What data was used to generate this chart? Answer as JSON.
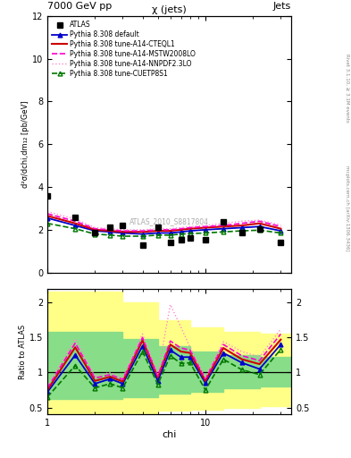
{
  "title_left": "7000 GeV pp",
  "title_right": "Jets",
  "main_title": "χ (jets)",
  "ylabel_main": "d²σ/dchi,dm₁₂ [pb/GeV]",
  "ylabel_ratio": "Ratio to ATLAS",
  "xlabel": "chi",
  "watermark": "ATLAS_2010_S8817804",
  "right_label_top": "Rivet 3.1.10, ≥ 3.1M events",
  "right_label_bottom": "mcplots.cern.ch [arXiv:1306.3436]",
  "chi_values": [
    1.0,
    1.5,
    2.0,
    2.5,
    3.0,
    4.0,
    5.0,
    6.0,
    7.0,
    8.0,
    10.0,
    13.0,
    17.0,
    22.0,
    30.0
  ],
  "atlas_y": [
    3.6,
    2.6,
    1.85,
    2.1,
    2.2,
    1.3,
    2.1,
    1.4,
    1.55,
    1.6,
    1.55,
    2.35,
    1.85,
    2.05,
    1.4
  ],
  "pythia_default_y": [
    2.55,
    2.2,
    1.95,
    1.9,
    1.85,
    1.8,
    1.85,
    1.85,
    1.9,
    1.95,
    2.0,
    2.05,
    2.1,
    2.15,
    1.95
  ],
  "pythia_cteql1_y": [
    2.65,
    2.3,
    2.0,
    1.95,
    1.9,
    1.9,
    1.95,
    1.95,
    2.0,
    2.05,
    2.1,
    2.15,
    2.2,
    2.3,
    2.05
  ],
  "pythia_mstw_y": [
    2.75,
    2.4,
    2.05,
    2.0,
    1.95,
    1.95,
    2.0,
    2.0,
    2.05,
    2.1,
    2.15,
    2.2,
    2.3,
    2.4,
    2.15
  ],
  "pythia_nnpdf_y": [
    2.85,
    2.5,
    2.1,
    2.05,
    2.0,
    2.0,
    2.05,
    2.05,
    2.1,
    2.15,
    2.2,
    2.3,
    2.4,
    2.45,
    2.22
  ],
  "pythia_cuetp8s1_y": [
    2.3,
    2.05,
    1.8,
    1.75,
    1.7,
    1.7,
    1.75,
    1.75,
    1.8,
    1.82,
    1.85,
    1.9,
    1.95,
    1.98,
    1.85
  ],
  "ratio_default": [
    0.72,
    1.25,
    0.84,
    0.91,
    0.84,
    1.38,
    0.88,
    1.32,
    1.22,
    1.22,
    0.85,
    1.28,
    1.14,
    1.05,
    1.4
  ],
  "ratio_cteql1": [
    0.75,
    1.36,
    0.88,
    0.94,
    0.87,
    1.46,
    0.93,
    1.4,
    1.3,
    1.28,
    0.88,
    1.35,
    1.19,
    1.12,
    1.47
  ],
  "ratio_mstw": [
    0.78,
    1.42,
    0.92,
    0.97,
    0.9,
    1.5,
    0.95,
    1.45,
    1.35,
    1.32,
    0.91,
    1.4,
    1.24,
    1.17,
    1.55
  ],
  "ratio_nnpdf": [
    0.8,
    1.48,
    0.95,
    1.0,
    0.92,
    1.55,
    0.98,
    1.97,
    1.65,
    1.36,
    0.93,
    1.44,
    1.3,
    1.22,
    1.62
  ],
  "ratio_cuetp8s1": [
    0.65,
    1.1,
    0.78,
    0.84,
    0.78,
    1.3,
    0.83,
    1.24,
    1.13,
    1.14,
    0.75,
    1.19,
    1.04,
    0.97,
    1.33
  ],
  "yellow_band_x": [
    1.0,
    2.0,
    3.0,
    5.0,
    8.0,
    13.0,
    22.0,
    35.0
  ],
  "yellow_band_lo": [
    0.4,
    0.4,
    0.42,
    0.45,
    0.47,
    0.5,
    0.52,
    0.52
  ],
  "yellow_band_hi": [
    2.15,
    2.15,
    2.0,
    1.75,
    1.65,
    1.58,
    1.55,
    1.55
  ],
  "green_band_x": [
    1.0,
    2.0,
    3.0,
    5.0,
    8.0,
    13.0,
    22.0,
    35.0
  ],
  "green_band_lo": [
    0.62,
    0.62,
    0.65,
    0.7,
    0.73,
    0.78,
    0.8,
    0.8
  ],
  "green_band_hi": [
    1.58,
    1.58,
    1.48,
    1.38,
    1.3,
    1.25,
    1.22,
    1.22
  ],
  "color_default": "#0000cc",
  "color_cteql1": "#cc0000",
  "color_mstw": "#ff00cc",
  "color_nnpdf": "#ff88cc",
  "color_cuetp8s1": "#007700",
  "color_atlas": "#000000"
}
